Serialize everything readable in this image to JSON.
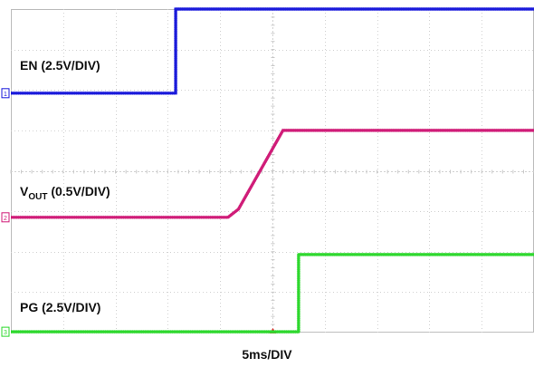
{
  "chart_data": {
    "type": "line",
    "grid": true,
    "x_divisions": 10,
    "y_divisions": 8,
    "xlabel": "5ms/DIV",
    "series": [
      {
        "name": "EN (2.5V/DIV)",
        "name_main": "EN (2.5V/DIV)",
        "color": "#1a1adb",
        "ground_marker": "1",
        "x": [
          0,
          3.15,
          3.15,
          10
        ],
        "y": [
          5.92,
          5.92,
          8.0,
          8.0
        ]
      },
      {
        "name": "VOUT (0.5V/DIV)",
        "name_main": "V",
        "name_sub": "OUT",
        "name_rest": " (0.5V/DIV)",
        "color": "#d01c78",
        "ground_marker": "2",
        "x": [
          0,
          4.15,
          4.35,
          5.2,
          10
        ],
        "y": [
          2.85,
          2.85,
          3.05,
          5.0,
          5.0
        ]
      },
      {
        "name": "PG (2.5V/DIV)",
        "name_main": "PG (2.5V/DIV)",
        "color": "#2ed82e",
        "ground_marker": "3",
        "x": [
          0,
          5.5,
          5.5,
          10
        ],
        "y": [
          0.02,
          0.02,
          1.93,
          1.93
        ]
      }
    ]
  }
}
